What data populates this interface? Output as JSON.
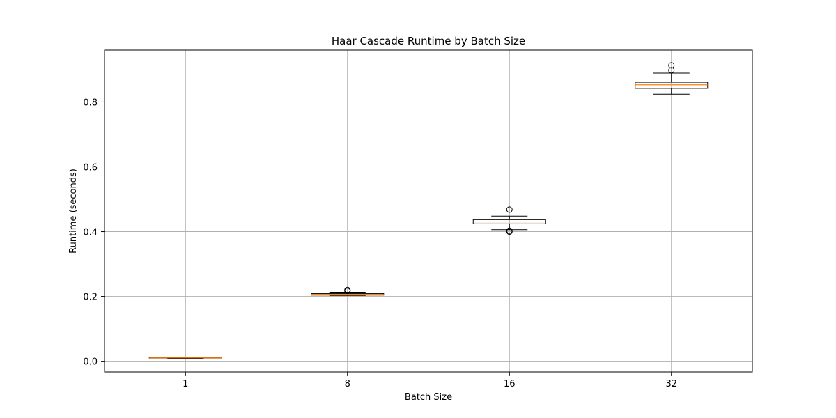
{
  "chart_data": {
    "type": "box",
    "title": "Haar Cascade Runtime by Batch Size",
    "xlabel": "Batch Size",
    "ylabel": "Runtime (seconds)",
    "categories": [
      "1",
      "8",
      "16",
      "32"
    ],
    "ylim": [
      -0.033,
      0.96
    ],
    "yticks": [
      0.0,
      0.2,
      0.4,
      0.6,
      0.8
    ],
    "ytick_labels": [
      "0.0",
      "0.2",
      "0.4",
      "0.6",
      "0.8"
    ],
    "grid": true,
    "boxes": [
      {
        "category": "1",
        "whisker_low": 0.009,
        "q1": 0.01,
        "median": 0.0105,
        "q3": 0.012,
        "whisker_high": 0.013,
        "outliers": []
      },
      {
        "category": "8",
        "whisker_low": 0.203,
        "q1": 0.204,
        "median": 0.2065,
        "q3": 0.209,
        "whisker_high": 0.213,
        "outliers": [
          0.217,
          0.22
        ]
      },
      {
        "category": "16",
        "whisker_low": 0.406,
        "q1": 0.424,
        "median": 0.43,
        "q3": 0.437,
        "whisker_high": 0.448,
        "outliers": [
          0.4,
          0.403,
          0.468
        ]
      },
      {
        "category": "32",
        "whisker_low": 0.824,
        "q1": 0.842,
        "median": 0.853,
        "q3": 0.861,
        "whisker_high": 0.889,
        "outliers": [
          0.898,
          0.913
        ]
      }
    ],
    "colors": {
      "box_edge": "#000000",
      "median": "#ff7f0e",
      "grid": "#b0b0b0",
      "axes": "#000000"
    }
  }
}
